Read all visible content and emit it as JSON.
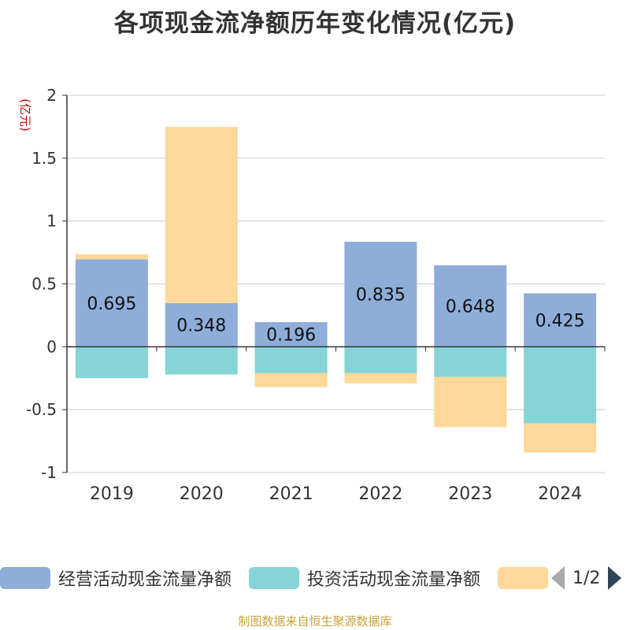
{
  "title": "各项现金流净额历年变化情况(亿元)",
  "legend": {
    "pager_text": "1/2"
  },
  "source": "制图数据来自恒生聚源数据库",
  "colors": {
    "operating": "#8fadd9",
    "investing": "#86d4d8",
    "financing": "#fed898",
    "axis": "#333333",
    "grid": "#cccccc",
    "unit": "#cc0000"
  },
  "chart_data": {
    "type": "bar",
    "stacked": true,
    "title": "各项现金流净额历年变化情况(亿元)",
    "unit_label": "(亿元)",
    "categories": [
      "2019",
      "2020",
      "2021",
      "2022",
      "2023",
      "2024"
    ],
    "ylim": [
      -1,
      2
    ],
    "yticks": [
      2,
      1.5,
      1,
      0.5,
      0,
      -0.5,
      -1
    ],
    "ytick_labels": [
      "2",
      "1.5",
      "1",
      "0.5",
      "0",
      "-0.5",
      "-1"
    ],
    "series": [
      {
        "name": "经营活动现金流量净额",
        "values": [
          0.695,
          0.348,
          0.196,
          0.835,
          0.648,
          0.425
        ],
        "labels": [
          "0.695",
          "0.348",
          "0.196",
          "0.835",
          "0.648",
          "0.425"
        ],
        "show_labels": true
      },
      {
        "name": "投资活动现金流量净额",
        "values": [
          -0.25,
          -0.22,
          -0.21,
          -0.21,
          -0.24,
          -0.61
        ],
        "show_labels": false
      },
      {
        "name": "",
        "values": [
          0.04,
          1.4,
          -0.11,
          -0.08,
          -0.4,
          -0.23
        ],
        "show_labels": false
      }
    ]
  }
}
